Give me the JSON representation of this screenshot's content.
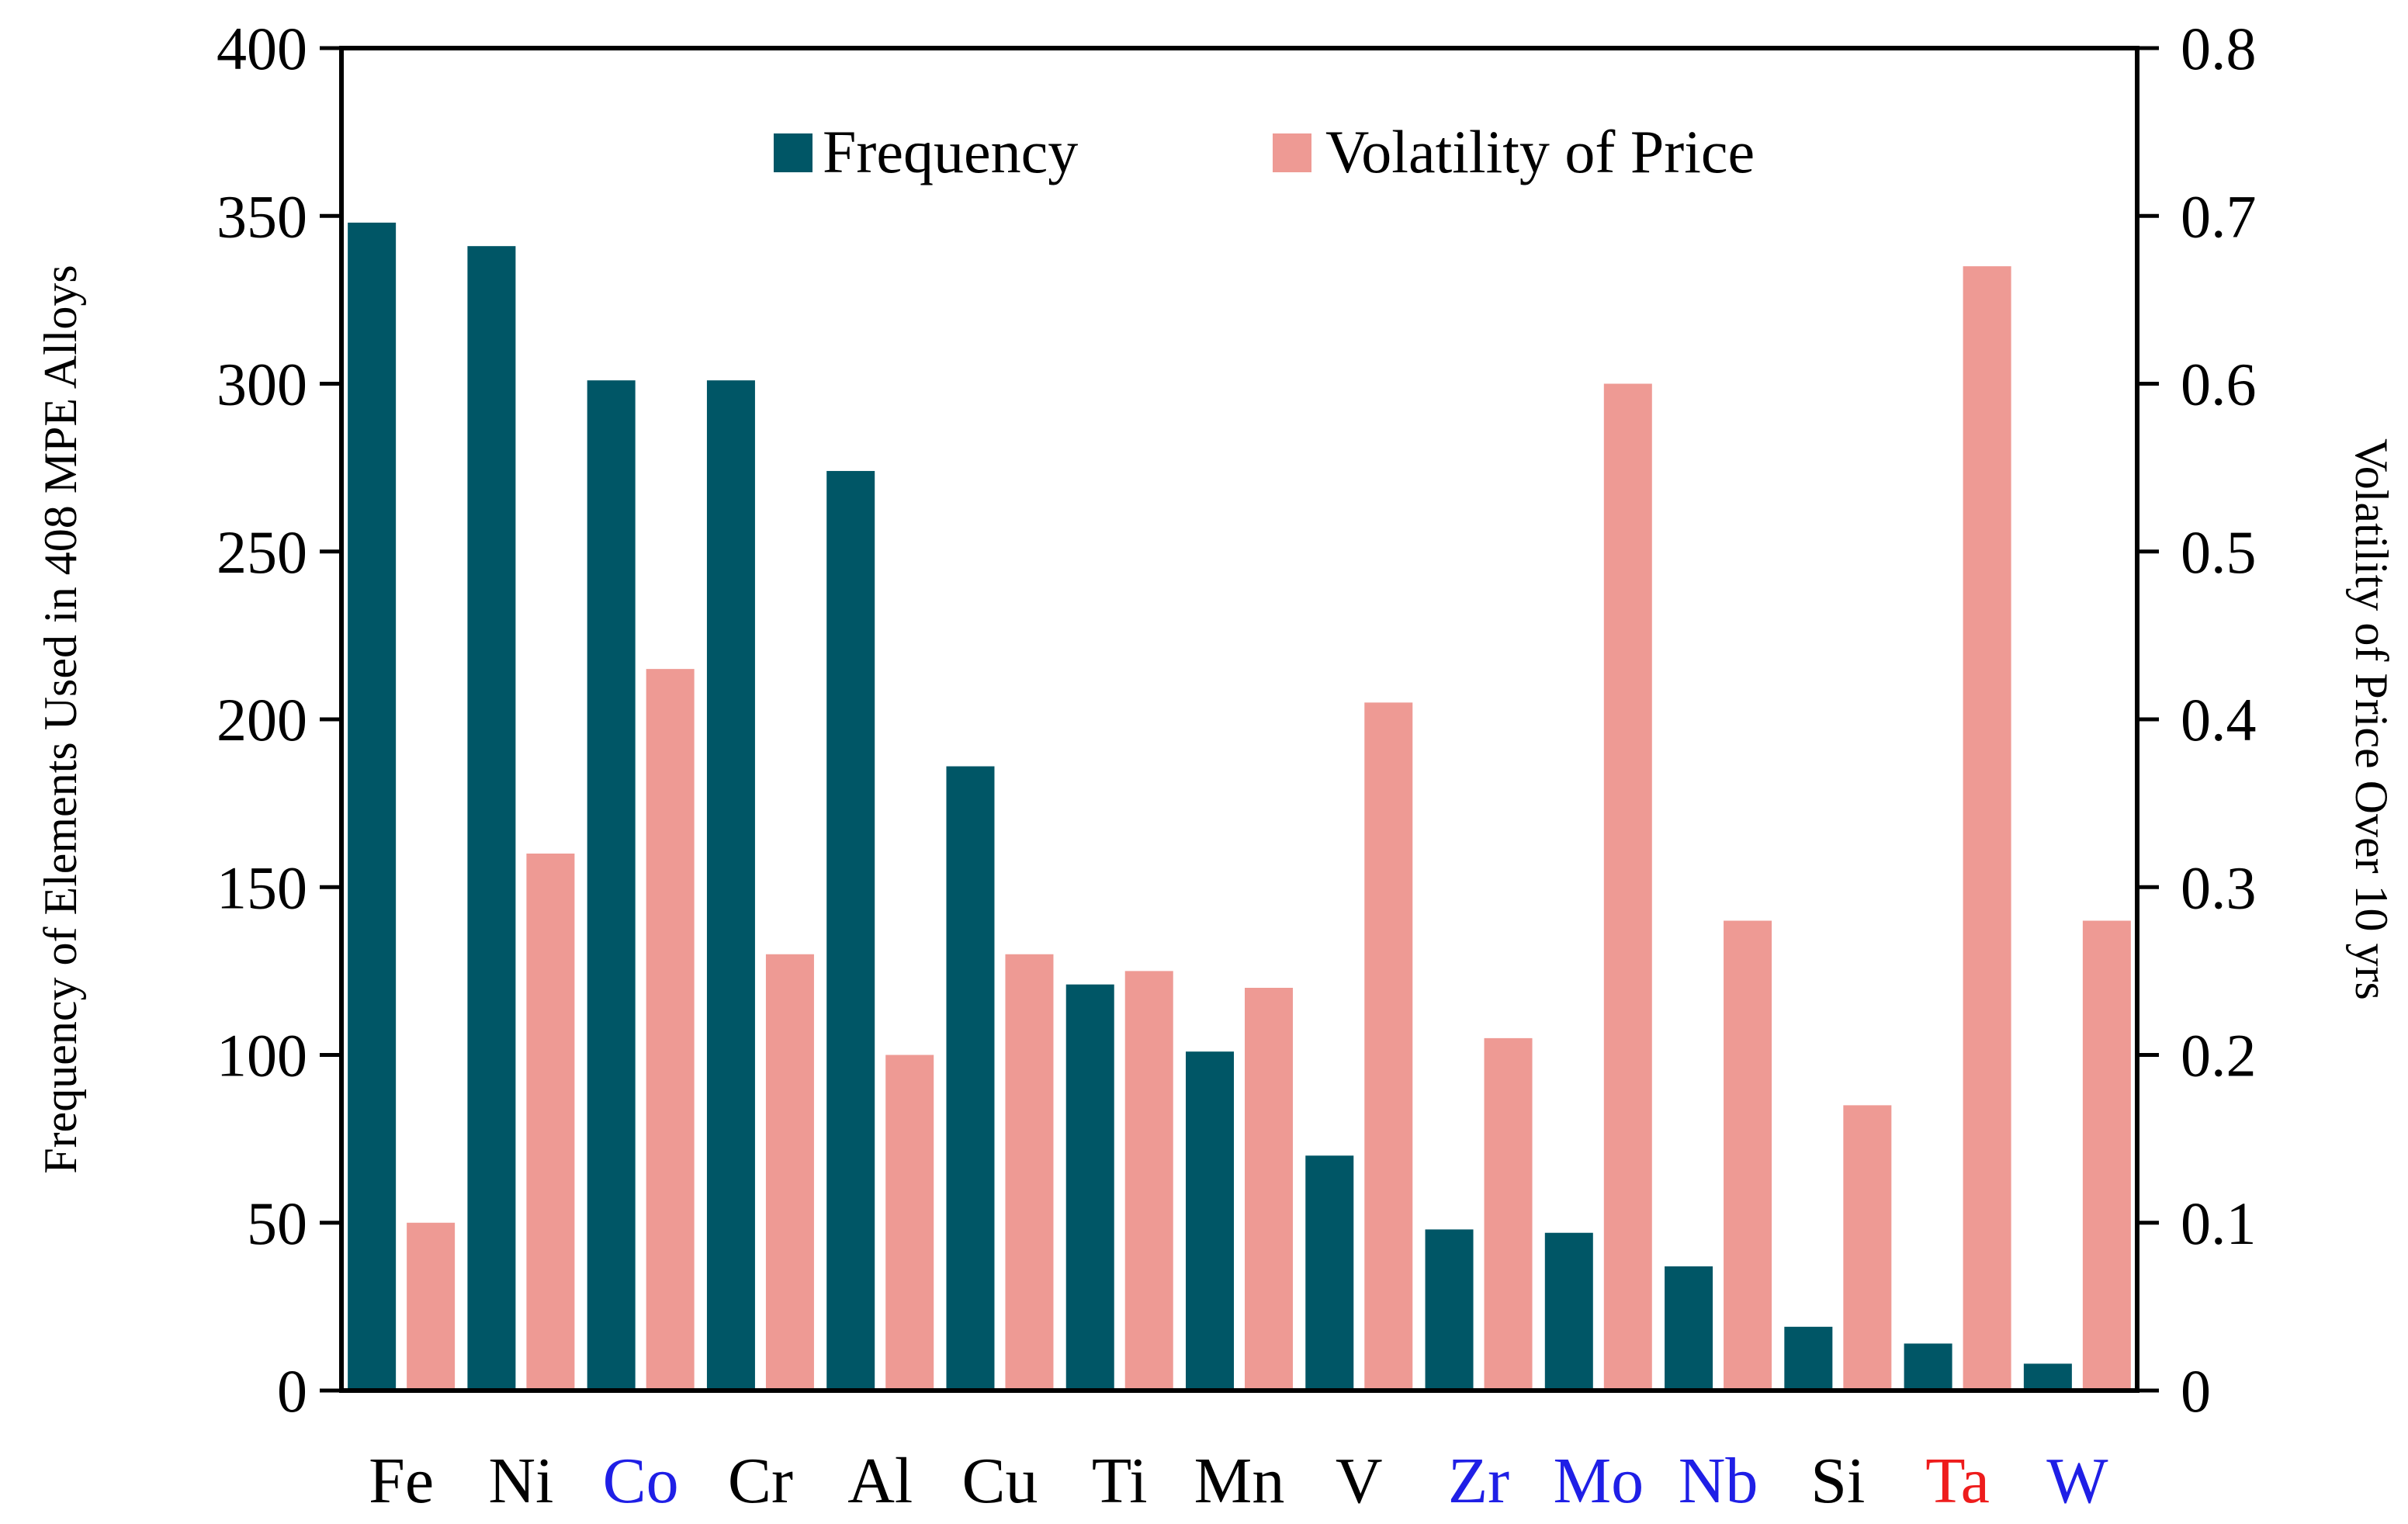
{
  "colors": {
    "frequency": "#005666",
    "volatility": "#ee9a94",
    "axis": "#000000",
    "label_default": "#000000",
    "label_blue": "#1f1fe6",
    "label_red": "#ee1c1c"
  },
  "chart_data": {
    "type": "bar",
    "title": "",
    "categories": [
      "Fe",
      "Ni",
      "Co",
      "Cr",
      "Al",
      "Cu",
      "Ti",
      "Mn",
      "V",
      "Zr",
      "Mo",
      "Nb",
      "Si",
      "Ta",
      "W"
    ],
    "category_colors": [
      "default",
      "default",
      "blue",
      "default",
      "default",
      "default",
      "default",
      "default",
      "default",
      "blue",
      "blue",
      "blue",
      "default",
      "red",
      "blue"
    ],
    "series": [
      {
        "name": "Frequency",
        "axis": "left",
        "values": [
          348,
          341,
          301,
          301,
          274,
          186,
          121,
          101,
          70,
          48,
          47,
          37,
          19,
          14,
          8
        ]
      },
      {
        "name": "Volatility of Price",
        "axis": "right",
        "values": [
          0.1,
          0.32,
          0.43,
          0.26,
          0.2,
          0.26,
          0.25,
          0.24,
          0.41,
          0.21,
          0.6,
          0.28,
          0.17,
          0.67,
          0.28
        ]
      }
    ],
    "ylabel": "Frequency of Elements Used in 408 MPE Alloys",
    "y2label": "Volatility of Price Over 10 yrs",
    "ylim": [
      0,
      400
    ],
    "y2lim": [
      0,
      0.8
    ],
    "yticks": [
      "0",
      "50",
      "100",
      "150",
      "200",
      "250",
      "300",
      "350",
      "400"
    ],
    "y2ticks": [
      "0",
      "0.1",
      "0.2",
      "0.3",
      "0.4",
      "0.5",
      "0.6",
      "0.7",
      "0.8"
    ],
    "legend_position": "top-center",
    "grid": false
  }
}
